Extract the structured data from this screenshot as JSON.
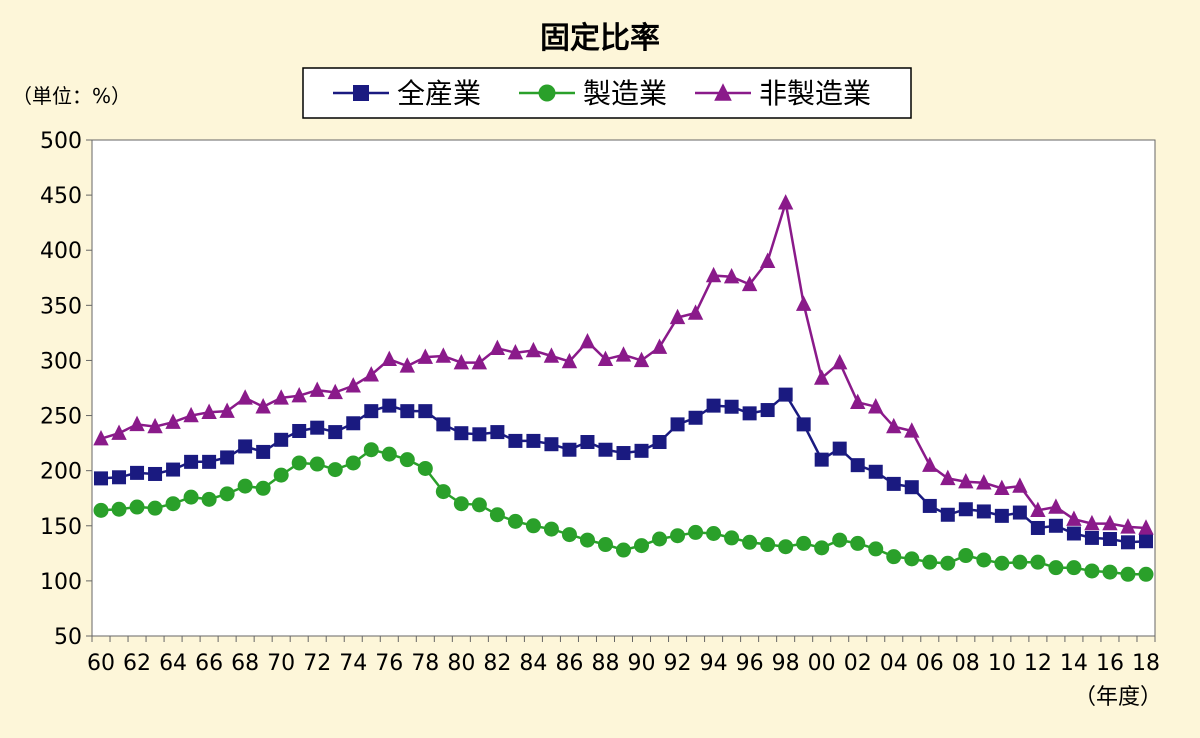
{
  "chart_data": {
    "type": "line",
    "title": "固定比率",
    "ylabel": "（単位：%）",
    "xlabel": "（年度）",
    "ylim": [
      50,
      500
    ],
    "yticks": [
      50,
      100,
      150,
      200,
      250,
      300,
      350,
      400,
      450,
      500
    ],
    "x": [
      1960,
      1961,
      1962,
      1963,
      1964,
      1965,
      1966,
      1967,
      1968,
      1969,
      1970,
      1971,
      1972,
      1973,
      1974,
      1975,
      1976,
      1977,
      1978,
      1979,
      1980,
      1981,
      1982,
      1983,
      1984,
      1985,
      1986,
      1987,
      1988,
      1989,
      1990,
      1991,
      1992,
      1993,
      1994,
      1995,
      1996,
      1997,
      1998,
      1999,
      2000,
      2001,
      2002,
      2003,
      2004,
      2005,
      2006,
      2007,
      2008,
      2009,
      2010,
      2011,
      2012,
      2013,
      2014,
      2015,
      2016,
      2017,
      2018
    ],
    "xtick_labels": [
      "60",
      "62",
      "64",
      "66",
      "68",
      "70",
      "72",
      "74",
      "76",
      "78",
      "80",
      "82",
      "84",
      "86",
      "88",
      "90",
      "92",
      "94",
      "96",
      "98",
      "00",
      "02",
      "04",
      "06",
      "08",
      "10",
      "12",
      "14",
      "16",
      "18"
    ],
    "legend_position": "top-center",
    "grid": false,
    "series": [
      {
        "name": "全産業",
        "color": "#1a1a80",
        "marker": "square",
        "values": [
          193,
          194,
          198,
          197,
          201,
          208,
          208,
          212,
          222,
          217,
          228,
          236,
          239,
          235,
          243,
          254,
          259,
          254,
          254,
          242,
          234,
          233,
          235,
          227,
          227,
          224,
          219,
          226,
          219,
          216,
          218,
          226,
          242,
          248,
          259,
          258,
          252,
          255,
          269,
          242,
          210,
          220,
          205,
          199,
          188,
          185,
          168,
          160,
          165,
          163,
          159,
          162,
          148,
          150,
          143,
          139,
          138,
          135,
          136
        ]
      },
      {
        "name": "製造業",
        "color": "#2aa02a",
        "marker": "circle",
        "values": [
          164,
          165,
          167,
          166,
          170,
          176,
          174,
          179,
          186,
          184,
          196,
          207,
          206,
          201,
          207,
          219,
          215,
          210,
          202,
          181,
          170,
          169,
          160,
          154,
          150,
          147,
          142,
          137,
          133,
          128,
          132,
          138,
          141,
          144,
          143,
          139,
          135,
          133,
          131,
          134,
          130,
          137,
          134,
          129,
          122,
          120,
          117,
          116,
          123,
          119,
          116,
          117,
          117,
          112,
          112,
          109,
          108,
          106,
          106
        ]
      },
      {
        "name": "非製造業",
        "color": "#8a1a8a",
        "marker": "triangle",
        "values": [
          229,
          234,
          242,
          240,
          244,
          250,
          253,
          254,
          266,
          258,
          266,
          268,
          273,
          271,
          277,
          287,
          301,
          295,
          303,
          304,
          298,
          298,
          311,
          307,
          309,
          304,
          299,
          317,
          301,
          305,
          300,
          312,
          339,
          343,
          377,
          376,
          369,
          390,
          443,
          351,
          284,
          298,
          262,
          258,
          240,
          236,
          205,
          193,
          190,
          189,
          184,
          186,
          164,
          167,
          156,
          152,
          152,
          149,
          148
        ]
      }
    ]
  }
}
